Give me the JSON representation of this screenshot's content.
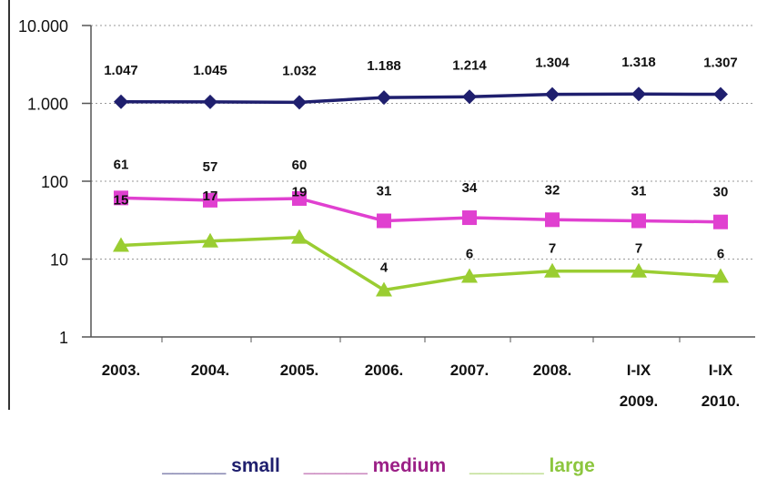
{
  "chart_data": {
    "type": "line",
    "title": "",
    "xlabel": "",
    "ylabel": "",
    "yscale": "log",
    "ylim": [
      1,
      10000
    ],
    "ytick_labels": [
      "10.000",
      "1.000",
      "100",
      "10",
      "1"
    ],
    "ytick_values": [
      10000,
      1000,
      100,
      10,
      1
    ],
    "grid": true,
    "legend_position": "bottom",
    "categories": [
      "2003.",
      "2004.",
      "2005.",
      "2006.",
      "2007.",
      "2008.",
      "I-IX 2009.",
      "I-IX 2010."
    ],
    "category_lines": [
      [
        "2003."
      ],
      [
        "2004."
      ],
      [
        "2005."
      ],
      [
        "2006."
      ],
      [
        "2007."
      ],
      [
        "2008."
      ],
      [
        "I-IX",
        "2009."
      ],
      [
        "I-IX",
        "2010."
      ]
    ],
    "series": [
      {
        "name": "small",
        "legend_text": "______ small",
        "color": "#1f1f6e",
        "marker": "diamond",
        "values": [
          1047,
          1045,
          1032,
          1188,
          1214,
          1304,
          1318,
          1307
        ],
        "labels": [
          "1.047",
          "1.045",
          "1.032",
          "1.188",
          "1.214",
          "1.304",
          "1.318",
          "1.307"
        ]
      },
      {
        "name": "medium",
        "legend_text": "______ medium",
        "color": "#e040d0",
        "legend_color": "#9b1f86",
        "marker": "square",
        "values": [
          61,
          57,
          60,
          31,
          34,
          32,
          31,
          30
        ],
        "labels": [
          "61",
          "57",
          "60",
          "31",
          "34",
          "32",
          "31",
          "30"
        ]
      },
      {
        "name": "large",
        "legend_text": "_______ large",
        "color": "#9acd32",
        "legend_color": "#8cc63e",
        "marker": "triangle",
        "values": [
          15,
          17,
          19,
          4,
          6,
          7,
          7,
          6
        ],
        "labels": [
          "15",
          "17",
          "19",
          "4",
          "6",
          "7",
          "7",
          "6"
        ]
      }
    ]
  }
}
